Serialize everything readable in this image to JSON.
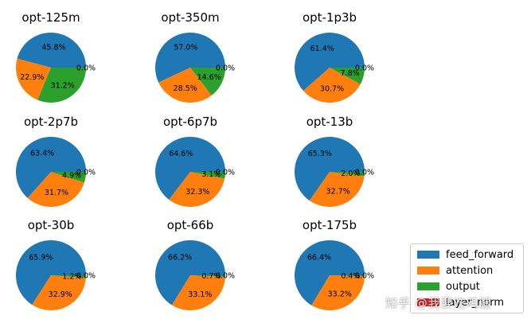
{
  "chart_data": [
    {
      "type": "pie",
      "title": "opt-125m",
      "categories": [
        "feed_forward",
        "attention",
        "output",
        "layer_norm"
      ],
      "values": [
        45.8,
        22.9,
        31.2,
        0.0
      ],
      "labels": [
        "45.8%",
        "22.9%",
        "31.2%",
        "0.0%"
      ]
    },
    {
      "type": "pie",
      "title": "opt-350m",
      "categories": [
        "feed_forward",
        "attention",
        "output",
        "layer_norm"
      ],
      "values": [
        57.0,
        28.5,
        14.6,
        0.0
      ],
      "labels": [
        "57.0%",
        "28.5%",
        "14.6%",
        "0.0%"
      ]
    },
    {
      "type": "pie",
      "title": "opt-1p3b",
      "categories": [
        "feed_forward",
        "attention",
        "output",
        "layer_norm"
      ],
      "values": [
        61.4,
        30.7,
        7.8,
        0.0
      ],
      "labels": [
        "61.4%",
        "30.7%",
        "7.8%",
        "0.0%"
      ]
    },
    {
      "type": "pie",
      "title": "opt-2p7b",
      "categories": [
        "feed_forward",
        "attention",
        "output",
        "layer_norm"
      ],
      "values": [
        63.4,
        31.7,
        4.9,
        0.0
      ],
      "labels": [
        "63.4%",
        "31.7%",
        "4.9%",
        "0.0%"
      ]
    },
    {
      "type": "pie",
      "title": "opt-6p7b",
      "categories": [
        "feed_forward",
        "attention",
        "output",
        "layer_norm"
      ],
      "values": [
        64.6,
        32.3,
        3.1,
        0.0
      ],
      "labels": [
        "64.6%",
        "32.3%",
        "3.1%",
        "0.0%"
      ]
    },
    {
      "type": "pie",
      "title": "opt-13b",
      "categories": [
        "feed_forward",
        "attention",
        "output",
        "layer_norm"
      ],
      "values": [
        65.3,
        32.7,
        2.0,
        0.0
      ],
      "labels": [
        "65.3%",
        "32.7%",
        "2.0%",
        "0.0%"
      ]
    },
    {
      "type": "pie",
      "title": "opt-30b",
      "categories": [
        "feed_forward",
        "attention",
        "output",
        "layer_norm"
      ],
      "values": [
        65.9,
        32.9,
        1.2,
        0.0
      ],
      "labels": [
        "65.9%",
        "32.9%",
        "1.2%",
        "0.0%"
      ]
    },
    {
      "type": "pie",
      "title": "opt-66b",
      "categories": [
        "feed_forward",
        "attention",
        "output",
        "layer_norm"
      ],
      "values": [
        66.2,
        33.1,
        0.7,
        0.0
      ],
      "labels": [
        "66.2%",
        "33.1%",
        "0.7%",
        "0.0%"
      ]
    },
    {
      "type": "pie",
      "title": "opt-175b",
      "categories": [
        "feed_forward",
        "attention",
        "output",
        "layer_norm"
      ],
      "values": [
        66.4,
        33.2,
        0.4,
        0.0
      ],
      "labels": [
        "66.4%",
        "33.2%",
        "0.4%",
        "0.0%"
      ]
    }
  ],
  "colors": [
    "#1f77b4",
    "#ff7f0e",
    "#2ca02c",
    "#d62728"
  ],
  "legend": {
    "placement": "bottom-right",
    "items": [
      "feed_forward",
      "attention",
      "output",
      "layer_norm"
    ]
  },
  "watermark": "知乎 @我要吃鸡腿"
}
